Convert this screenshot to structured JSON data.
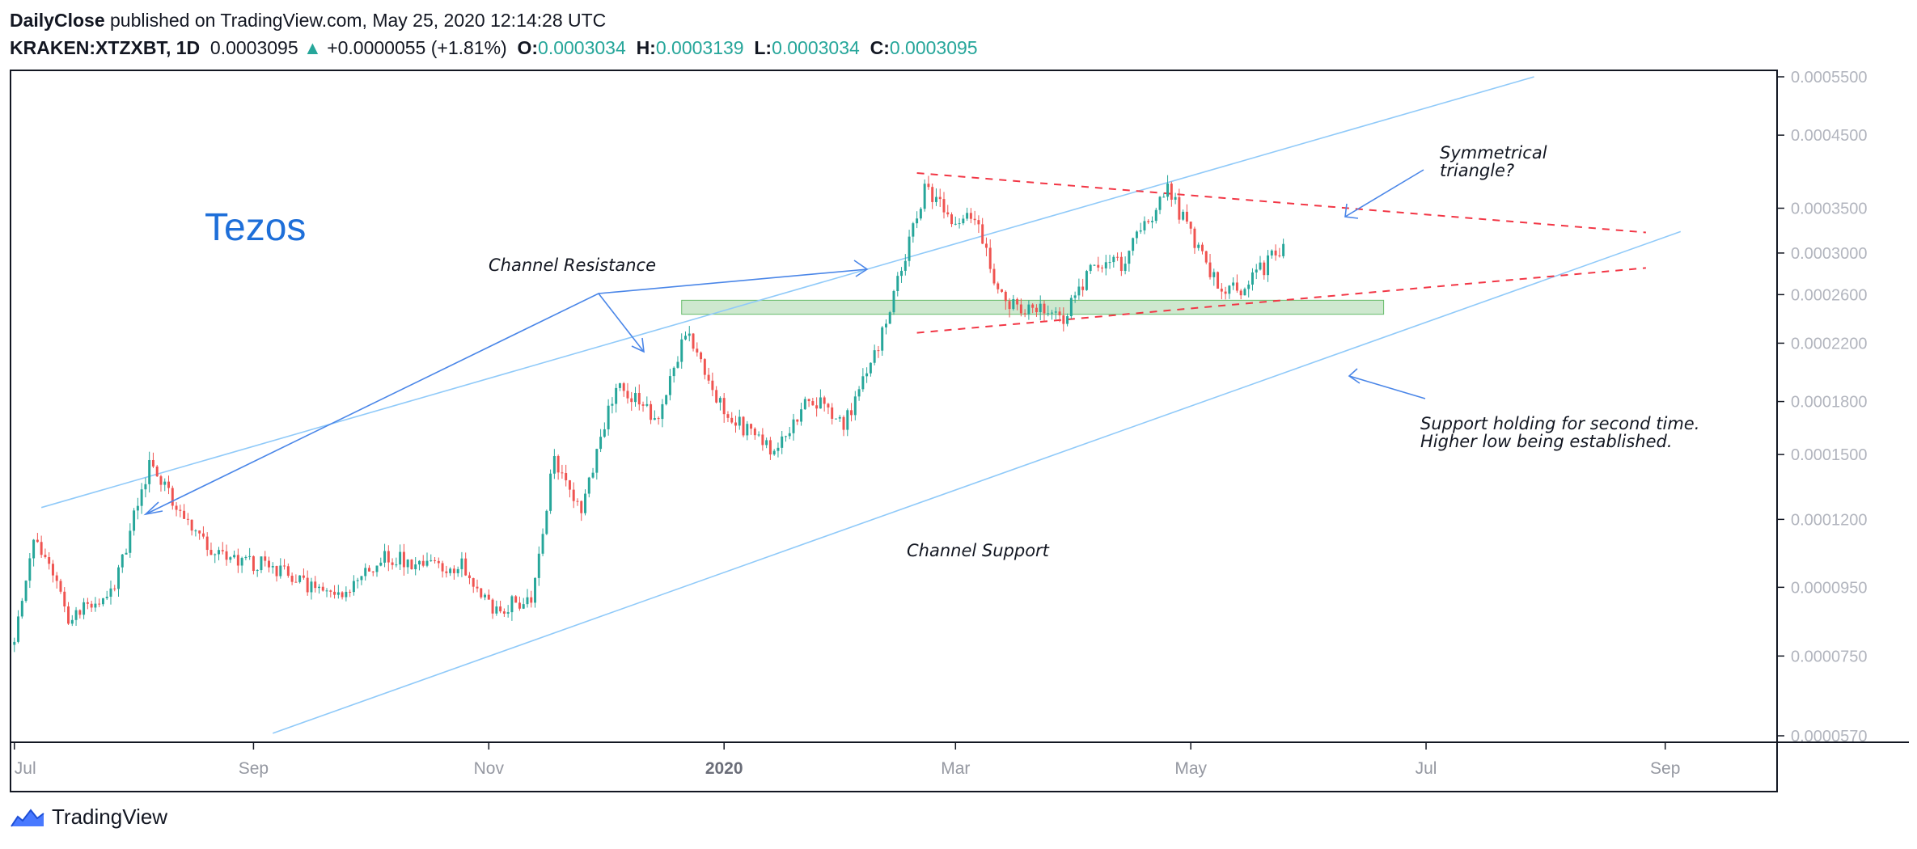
{
  "header": {
    "publisher": "DailyClose",
    "published_text": " published on TradingView.com, May 25, 2020 12:14:28 UTC",
    "symbol": "KRAKEN:XTZXBT, 1D",
    "last": "0.0003095",
    "change": "+0.0000055 (+1.81%)",
    "o_label": "O:",
    "o_value": "0.0003034",
    "h_label": "H:",
    "h_value": "0.0003139",
    "l_label": "L:",
    "l_value": "0.0003034",
    "c_label": "C:",
    "c_value": "0.0003095"
  },
  "footer": {
    "brand": "TradingView"
  },
  "colors": {
    "up": "#26a69a",
    "down": "#ef5350",
    "channel": "#90caf9",
    "triangle": "#f23645",
    "support_zone": "#a5d6a7",
    "annotation_arrow": "#4a86e8",
    "title": "#1e6fd9"
  },
  "chart_data": {
    "type": "candlestick",
    "symbol": "KRAKEN:XTZXBT",
    "interval": "1D",
    "title": "Tezos",
    "scale": "log",
    "ylim": [
      5.7e-05,
      0.00055
    ],
    "xlim": [
      "2019-06-30",
      "2020-09-30"
    ],
    "y_ticks": [
      "0.0005500",
      "0.0004500",
      "0.0003500",
      "0.0003000",
      "0.0002600",
      "0.0002200",
      "0.0001800",
      "0.0001500",
      "0.0001200",
      "0.0000950",
      "0.0000750",
      "0.0000570"
    ],
    "x_ticks": [
      {
        "label": "Jul",
        "date": "2019-07-01",
        "bold": false
      },
      {
        "label": "Sep",
        "date": "2019-09-01",
        "bold": false
      },
      {
        "label": "Nov",
        "date": "2019-11-01",
        "bold": false
      },
      {
        "label": "2020",
        "date": "2020-01-01",
        "bold": true
      },
      {
        "label": "Mar",
        "date": "2020-03-01",
        "bold": false
      },
      {
        "label": "May",
        "date": "2020-05-01",
        "bold": false
      },
      {
        "label": "Jul",
        "date": "2020-07-01",
        "bold": false
      },
      {
        "label": "Sep",
        "date": "2020-09-01",
        "bold": false
      }
    ],
    "price_path": [
      [
        "2019-07-01",
        8e-05
      ],
      [
        "2019-07-06",
        0.000115
      ],
      [
        "2019-07-15",
        8.6e-05
      ],
      [
        "2019-07-27",
        9.5e-05
      ],
      [
        "2019-08-05",
        0.000145
      ],
      [
        "2019-08-20",
        0.000108
      ],
      [
        "2019-09-10",
        0.0001
      ],
      [
        "2019-09-22",
        9.1e-05
      ],
      [
        "2019-10-05",
        0.000105
      ],
      [
        "2019-10-25",
        0.000102
      ],
      [
        "2019-11-02",
        8.7e-05
      ],
      [
        "2019-11-12",
        9.2e-05
      ],
      [
        "2019-11-18",
        0.000148
      ],
      [
        "2019-11-25",
        0.000125
      ],
      [
        "2019-12-04",
        0.00019
      ],
      [
        "2019-12-15",
        0.00017
      ],
      [
        "2019-12-22",
        0.00023
      ],
      [
        "2020-01-01",
        0.000175
      ],
      [
        "2020-01-14",
        0.00015
      ],
      [
        "2020-01-23",
        0.000185
      ],
      [
        "2020-02-01",
        0.000165
      ],
      [
        "2020-02-10",
        0.00022
      ],
      [
        "2020-02-22",
        0.000375
      ],
      [
        "2020-03-01",
        0.00033
      ],
      [
        "2020-03-06",
        0.00034
      ],
      [
        "2020-03-13",
        0.000255
      ],
      [
        "2020-03-21",
        0.000248
      ],
      [
        "2020-03-29",
        0.000242
      ],
      [
        "2020-04-06",
        0.00029
      ],
      [
        "2020-04-13",
        0.00029
      ],
      [
        "2020-04-25",
        0.000372
      ],
      [
        "2020-05-03",
        0.000305
      ],
      [
        "2020-05-09",
        0.000265
      ],
      [
        "2020-05-15",
        0.000265
      ],
      [
        "2020-05-25",
        0.0003095
      ]
    ],
    "lines": [
      {
        "name": "Channel resistance",
        "style": "solid",
        "points": [
          [
            "2019-07-08",
            0.000125
          ],
          [
            "2020-07-29",
            0.00055
          ]
        ]
      },
      {
        "name": "Channel support",
        "style": "solid",
        "points": [
          [
            "2019-09-06",
            5.75e-05
          ],
          [
            "2020-09-05",
            0.000323
          ]
        ]
      },
      {
        "name": "Triangle upper",
        "style": "dashed",
        "points": [
          [
            "2020-02-20",
            0.000395
          ],
          [
            "2020-08-27",
            0.000322
          ]
        ]
      },
      {
        "name": "Triangle lower",
        "style": "dashed",
        "points": [
          [
            "2020-02-20",
            0.000228
          ],
          [
            "2020-08-27",
            0.000285
          ]
        ]
      }
    ],
    "zones": [
      {
        "name": "Support zone",
        "from": "2019-12-21",
        "to": "2020-06-20",
        "low": 0.000243,
        "high": 0.000255
      }
    ],
    "annotations": [
      {
        "text": "Tezos",
        "kind": "title"
      },
      {
        "text": "Channel Resistance",
        "kind": "label"
      },
      {
        "text": "Channel Support",
        "kind": "label"
      },
      {
        "text": "Symmetrical",
        "kind": "label"
      },
      {
        "text": "triangle?",
        "kind": "label"
      },
      {
        "text": "Support holding for second time.",
        "kind": "label"
      },
      {
        "text": "Higher low being established.",
        "kind": "label"
      }
    ]
  }
}
